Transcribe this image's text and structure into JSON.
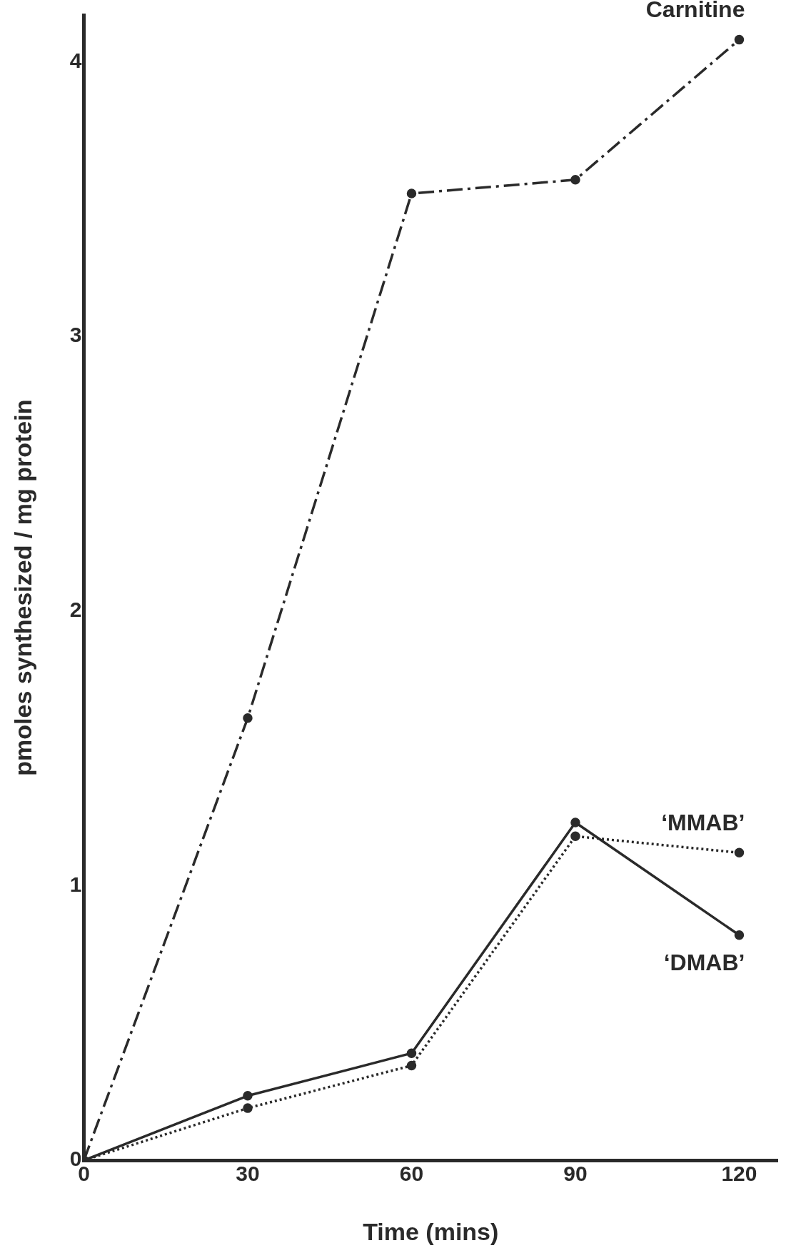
{
  "chart_data": {
    "type": "line",
    "xlabel": "Time (mins)",
    "ylabel": "pmoles synthesized / mg protein",
    "x": [
      0,
      30,
      60,
      90,
      120
    ],
    "series": [
      {
        "name": "Carnitine",
        "color": "#2a2a2a",
        "values": [
          0,
          1.61,
          3.52,
          3.57,
          4.08
        ],
        "line_style": "dashed"
      },
      {
        "name": "‘MMAB’",
        "color": "#2a2a2a",
        "values": [
          0,
          0.19,
          0.345,
          1.18,
          1.12
        ],
        "line_style": "dotted"
      },
      {
        "name": "‘DMAB’",
        "color": "#2a2a2a",
        "values": [
          0,
          0.235,
          0.39,
          1.23,
          0.82
        ],
        "line_style": "solid"
      }
    ],
    "xlim": [
      0,
      127
    ],
    "ylim": [
      0,
      4.17
    ],
    "xticks": [
      0,
      30,
      60,
      90,
      120
    ],
    "yticks": [
      0,
      1,
      2,
      3,
      4
    ],
    "grid": false,
    "legend": false,
    "marker": "circle"
  }
}
